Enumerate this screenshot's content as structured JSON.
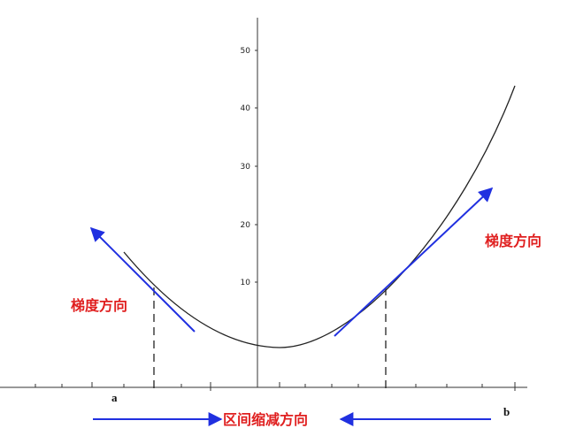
{
  "axis": {
    "yticks": [
      10,
      20,
      30,
      40,
      50
    ]
  },
  "labels": {
    "gradient_left": "梯度方向",
    "gradient_right": "梯度方向",
    "interval": "区间缩减方向",
    "a": "a",
    "b": "b"
  }
}
